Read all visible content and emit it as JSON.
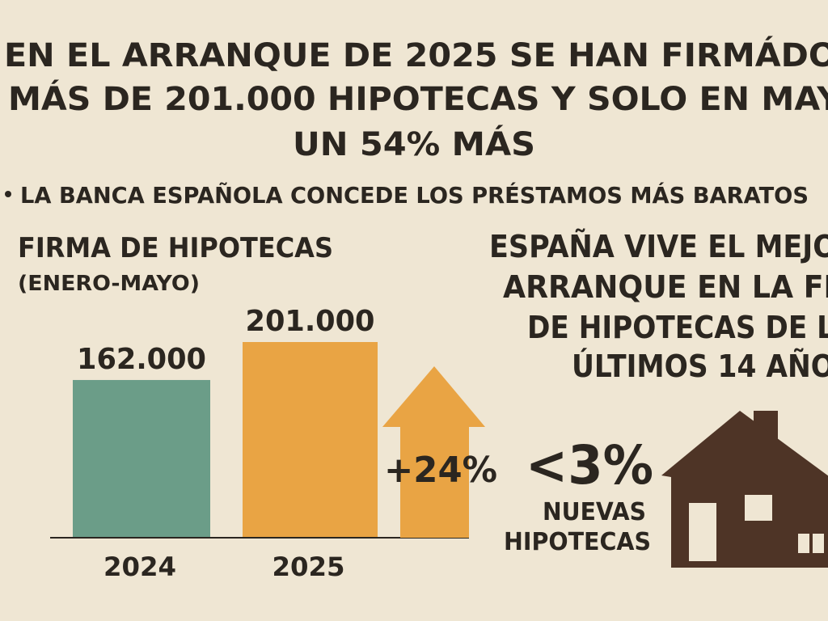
{
  "headline": [
    "EN EL ARRANQUE DE 2025 SE HAN FIRMÁDO",
    "MÁS DE 201.000 HIPOTECAS Y SOLO EN MAY",
    "UN 54% MÁS"
  ],
  "bullet": "LA BANCA ESPAÑOLA CONCEDE LOS PRÉSTAMOS MÁS BARATOS",
  "chart_data": {
    "type": "bar",
    "title": "FIRMA DE HIPOTECAS",
    "subtitle": "(ENERO-MAYO)",
    "categories": [
      "2024",
      "2025"
    ],
    "values": [
      162000,
      201000
    ],
    "value_labels": [
      "162.000",
      "201.000"
    ],
    "colors": [
      "#6b9d88",
      "#e9a444"
    ],
    "annotation": "+24%"
  },
  "side": {
    "lines": [
      "ESPAÑA VIVE EL MEJO",
      "ARRANQUE EN LA FI",
      "DE HIPOTECAS DE L",
      "ÚLTIMOS 14 AÑO"
    ],
    "stat": "<3%",
    "stat_label": [
      "NUEVAS",
      "HIPOTECAS"
    ]
  }
}
